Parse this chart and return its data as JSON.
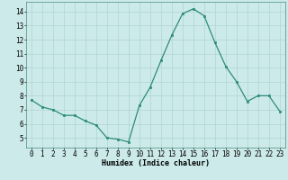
{
  "x": [
    0,
    1,
    2,
    3,
    4,
    5,
    6,
    7,
    8,
    9,
    10,
    11,
    12,
    13,
    14,
    15,
    16,
    17,
    18,
    19,
    20,
    21,
    22,
    23
  ],
  "y": [
    7.7,
    7.2,
    7.0,
    6.6,
    6.6,
    6.2,
    5.9,
    5.0,
    4.9,
    4.7,
    7.3,
    8.6,
    10.5,
    12.3,
    13.85,
    14.2,
    13.7,
    11.8,
    10.1,
    9.0,
    7.6,
    8.0,
    8.0,
    6.9
  ],
  "line_color": "#2d8b7a",
  "marker_color": "#2d8b7a",
  "bg_color": "#cceaea",
  "grid_color": "#b0d4d4",
  "xlabel": "Humidex (Indice chaleur)",
  "xlim": [
    -0.5,
    23.5
  ],
  "ylim": [
    4.3,
    14.7
  ],
  "yticks": [
    5,
    6,
    7,
    8,
    9,
    10,
    11,
    12,
    13,
    14
  ],
  "xticks": [
    0,
    1,
    2,
    3,
    4,
    5,
    6,
    7,
    8,
    9,
    10,
    11,
    12,
    13,
    14,
    15,
    16,
    17,
    18,
    19,
    20,
    21,
    22,
    23
  ],
  "xlabel_fontsize": 6.0,
  "tick_fontsize": 5.5
}
